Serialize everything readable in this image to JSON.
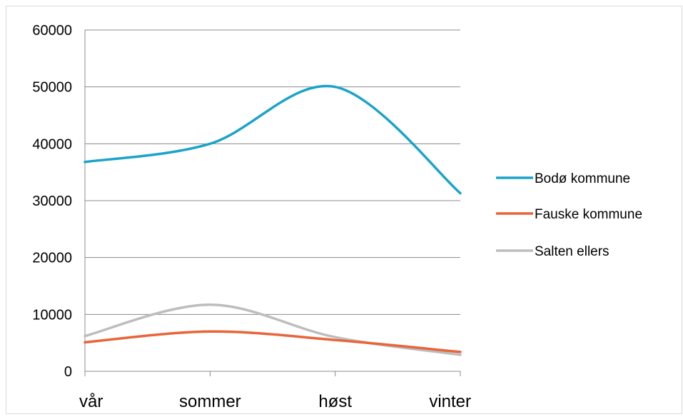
{
  "chart_data": {
    "type": "line",
    "smooth": true,
    "categories": [
      "vår",
      "sommer",
      "høst",
      "vinter"
    ],
    "yticks": [
      "0",
      "10000",
      "20000",
      "30000",
      "40000",
      "50000",
      "60000"
    ],
    "ylim": [
      0,
      60000
    ],
    "grid": true,
    "legend_position": "right",
    "series": [
      {
        "name": "Bodø kommune",
        "color": "#1ba3c9",
        "values": [
          36800,
          40000,
          50000,
          31300
        ]
      },
      {
        "name": "Fauske kommune",
        "color": "#e8653a",
        "values": [
          5100,
          7000,
          5500,
          3400
        ]
      },
      {
        "name": "Salten ellers",
        "color": "#bdbdbd",
        "values": [
          6200,
          11700,
          6000,
          2900
        ]
      }
    ]
  }
}
